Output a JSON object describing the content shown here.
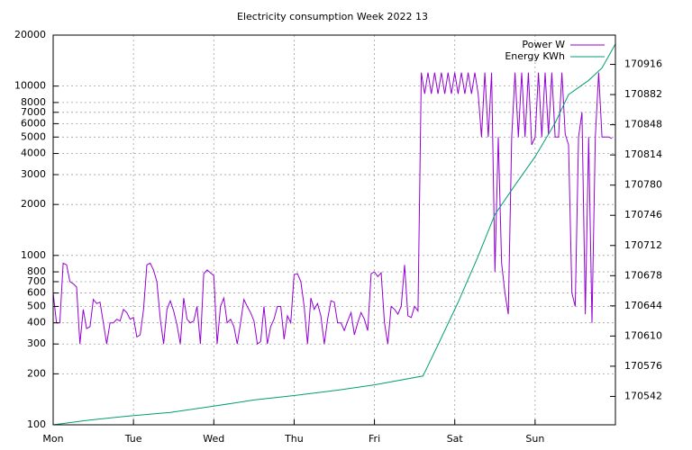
{
  "chart_data": {
    "type": "line",
    "title": "Electricity consumption Week 2022 13",
    "xlim": [
      0,
      168
    ],
    "xticks": [
      {
        "value": 0,
        "label": "Mon"
      },
      {
        "value": 24,
        "label": "Tue"
      },
      {
        "value": 48,
        "label": "Wed"
      },
      {
        "value": 72,
        "label": "Thu"
      },
      {
        "value": 96,
        "label": "Fri"
      },
      {
        "value": 120,
        "label": "Sat"
      },
      {
        "value": 144,
        "label": "Sun"
      }
    ],
    "ylim": [
      100,
      20000
    ],
    "ylog": true,
    "yticks": [
      100,
      200,
      300,
      400,
      500,
      600,
      700,
      800,
      1000,
      2000,
      3000,
      4000,
      5000,
      6000,
      7000,
      8000,
      10000,
      20000
    ],
    "y2lim": [
      170510,
      170949
    ],
    "y2ticks": [
      170542,
      170576,
      170610,
      170644,
      170678,
      170712,
      170746,
      170780,
      170814,
      170848,
      170882,
      170916
    ],
    "grid": true,
    "legend": "top-right",
    "series": [
      {
        "name": "Power W",
        "color": "#9400d3",
        "x": [
          0,
          1,
          2,
          3,
          4,
          5,
          6,
          7,
          8,
          9,
          10,
          11,
          12,
          13,
          14,
          15,
          16,
          17,
          18,
          19,
          20,
          21,
          22,
          23,
          24,
          25,
          26,
          27,
          28,
          29,
          30,
          31,
          32,
          33,
          34,
          35,
          36,
          37,
          38,
          39,
          40,
          41,
          42,
          43,
          44,
          45,
          46,
          47,
          48,
          49,
          50,
          51,
          52,
          53,
          54,
          55,
          56,
          57,
          58,
          59,
          60,
          61,
          62,
          63,
          64,
          65,
          66,
          67,
          68,
          69,
          70,
          71,
          72,
          73,
          74,
          75,
          76,
          77,
          78,
          79,
          80,
          81,
          82,
          83,
          84,
          85,
          86,
          87,
          88,
          89,
          90,
          91,
          92,
          93,
          94,
          95,
          96,
          97,
          98,
          99,
          100,
          101,
          102,
          103,
          104,
          105,
          106,
          107,
          108,
          109,
          110,
          111,
          112,
          113,
          114,
          115,
          116,
          117,
          118,
          119,
          120,
          121,
          122,
          123,
          124,
          125,
          126,
          127,
          128,
          129,
          130,
          131,
          132,
          133,
          134,
          135,
          136,
          137,
          138,
          139,
          140,
          141,
          142,
          143,
          144,
          145,
          146,
          147,
          148,
          149,
          150,
          151,
          152,
          153,
          154,
          155,
          156,
          157,
          158,
          159,
          160,
          161,
          162,
          163,
          164,
          165,
          166,
          167
        ],
        "values": [
          600,
          400,
          400,
          900,
          880,
          700,
          680,
          650,
          300,
          480,
          370,
          380,
          550,
          520,
          530,
          400,
          300,
          400,
          400,
          420,
          410,
          480,
          460,
          420,
          430,
          330,
          340,
          480,
          880,
          900,
          820,
          700,
          420,
          300,
          480,
          540,
          470,
          390,
          300,
          560,
          420,
          400,
          410,
          500,
          300,
          780,
          820,
          790,
          760,
          300,
          500,
          560,
          400,
          420,
          380,
          300,
          400,
          550,
          500,
          460,
          410,
          300,
          310,
          500,
          300,
          380,
          420,
          500,
          500,
          320,
          440,
          400,
          770,
          780,
          700,
          500,
          300,
          560,
          480,
          520,
          440,
          300,
          420,
          540,
          530,
          400,
          400,
          360,
          410,
          460,
          340,
          400,
          460,
          420,
          360,
          780,
          800,
          750,
          790,
          400,
          300,
          500,
          480,
          450,
          500,
          880,
          440,
          430,
          500,
          470,
          12000,
          9000,
          12000,
          9000,
          12000,
          9000,
          12000,
          9000,
          12000,
          9000,
          12000,
          9000,
          12000,
          9000,
          12000,
          9000,
          12000,
          9000,
          5000,
          12000,
          5000,
          12000,
          800,
          5000,
          900,
          600,
          450,
          5000,
          12000,
          5000,
          12000,
          5000,
          12000,
          4500,
          5000,
          12000,
          5000,
          12000,
          5200,
          12000,
          5000,
          5000,
          12000,
          5200,
          4500,
          600,
          500,
          5000,
          7000,
          450,
          5000,
          400,
          5000,
          12000,
          5000,
          5000,
          5000,
          4900
        ]
      },
      {
        "name": "Energy KWh",
        "color": "#009e73",
        "axis": "y2",
        "x": [
          0,
          10,
          23,
          35,
          48,
          60,
          72,
          85,
          96,
          110.5,
          115,
          121,
          127,
          132,
          138,
          144,
          150,
          154,
          160,
          164,
          168
        ],
        "values": [
          170510,
          170515,
          170520,
          170524,
          170531,
          170538,
          170543,
          170549,
          170555,
          170565,
          170600,
          170648,
          170700,
          170747,
          170780,
          170812,
          170850,
          170882,
          170898,
          170912,
          170939
        ]
      }
    ]
  }
}
